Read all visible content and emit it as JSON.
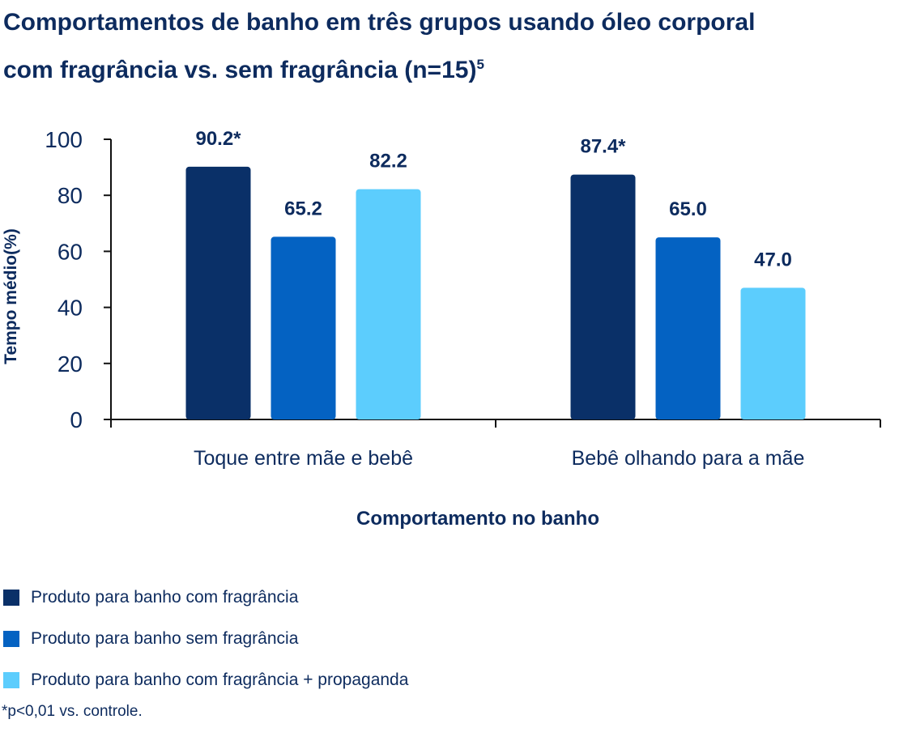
{
  "title_line1": "Comportamentos de banho em três grupos usando óleo corporal",
  "title_line2": "com fragrância vs. sem fragrância (n=15)",
  "title_sup": "5",
  "footnote": "*p<0,01 vs. controle.",
  "colors": {
    "text": "#0d2b5e",
    "series": [
      "#0a3068",
      "#0462c2",
      "#5ccdfd"
    ]
  },
  "chart_data": {
    "type": "bar",
    "categories": [
      "Toque entre mãe e bebê",
      "Bebê olhando para a mãe"
    ],
    "series": [
      {
        "name": "Produto para banho com fragrância",
        "values": [
          90.2,
          87.4
        ],
        "labels": [
          "90.2*",
          "87.4*"
        ]
      },
      {
        "name": "Produto para banho sem fragrância",
        "values": [
          65.2,
          65.0
        ],
        "labels": [
          "65.2",
          "65.0"
        ]
      },
      {
        "name": "Produto para banho com fragrância + propaganda",
        "values": [
          82.2,
          47.0
        ],
        "labels": [
          "82.2",
          "47.0"
        ]
      }
    ],
    "xlabel": "Comportamento no banho",
    "ylabel": "Tempo médio(%)",
    "ylim": [
      0,
      100
    ],
    "yticks": [
      "0",
      "20",
      "40",
      "60",
      "80",
      "100"
    ],
    "legend": "bottom-left"
  }
}
